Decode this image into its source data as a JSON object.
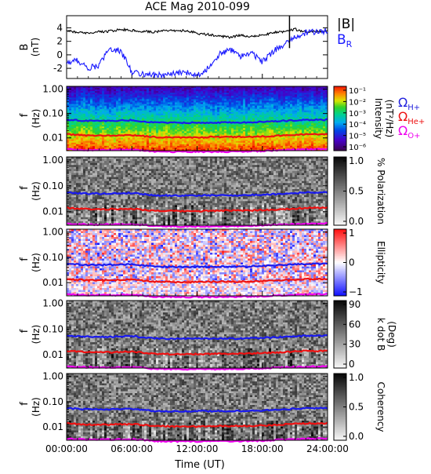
{
  "title": "ACE Mag 2010-099",
  "time_axis": {
    "label": "Time (UT)",
    "ticks": [
      "00:00:00",
      "06:00:00",
      "12:00:00",
      "18:00:00",
      "24:00:00"
    ],
    "range_hours": [
      0,
      24
    ]
  },
  "freq_axis": {
    "label": "f",
    "unit": "(Hz)",
    "ticks": [
      "1.00",
      "0.10",
      "0.01"
    ],
    "range_hz": [
      0.003,
      1.3
    ]
  },
  "gyro_labels": {
    "h": {
      "base": "Ω",
      "sub": "H+",
      "color": "#2222dd"
    },
    "he": {
      "base": "Ω",
      "sub": "He+",
      "color": "#ee1111"
    },
    "o": {
      "base": "Ω",
      "sub": "O+",
      "color": "#ee00ee"
    }
  },
  "colors": {
    "bmag": "#000000",
    "br": "#1a1aff",
    "h": "#1a1aee",
    "he": "#ee1111",
    "o": "#ee00ee"
  },
  "chart_data": [
    {
      "type": "line",
      "panel": "field",
      "ylabel": "B",
      "yunit": "(nT)",
      "ylim": [
        -3.5,
        5.8
      ],
      "yticks": [
        "4",
        "2",
        "0",
        "-2"
      ],
      "legend": [
        {
          "label": "|B|",
          "color": "#000000"
        },
        {
          "label": "B",
          "sub": "R",
          "color": "#1a1aff"
        }
      ],
      "x_hours": [
        0,
        1,
        2,
        3,
        4,
        5,
        6,
        7,
        8,
        9,
        10,
        11,
        12,
        13,
        14,
        15,
        16,
        17,
        18,
        19,
        20,
        21,
        22,
        23,
        24
      ],
      "series": [
        {
          "name": "|B|",
          "values": [
            3.6,
            3.3,
            3.2,
            3.4,
            3.5,
            3.8,
            3.6,
            3.5,
            3.4,
            3.6,
            3.5,
            3.6,
            3.2,
            3.0,
            2.8,
            2.6,
            2.9,
            2.7,
            2.9,
            3.3,
            3.4,
            3.8,
            3.4,
            3.5,
            3.5
          ]
        },
        {
          "name": "B_R",
          "values": [
            -1.2,
            -0.8,
            -2.0,
            -1.5,
            1.0,
            0.5,
            -2.5,
            -2.8,
            -3.0,
            -3.0,
            -2.8,
            -2.6,
            -3.0,
            -2.0,
            0.0,
            0.8,
            -0.2,
            0.3,
            -1.0,
            0.5,
            1.5,
            2.5,
            3.3,
            3.4,
            3.5
          ]
        }
      ]
    },
    {
      "type": "heatmap",
      "panel": "intensity",
      "colorbar_label": "Intensity",
      "colorbar_unit": "(nT²/Hz)",
      "colorbar_ticks": [
        "10⁻¹",
        "10⁻²",
        "10⁻³",
        "10⁻⁴",
        "10⁻⁵",
        "10⁻⁶"
      ],
      "colorbar_range": [
        -6.3,
        -0.5
      ]
    },
    {
      "type": "heatmap",
      "panel": "polarization",
      "colorbar_label": "% Polarization",
      "colorbar_ticks": [
        "1.0",
        "0.5",
        "0.0"
      ],
      "colorbar_range": [
        0,
        1
      ]
    },
    {
      "type": "heatmap",
      "panel": "ellipticity",
      "colorbar_label": "Ellipticity",
      "colorbar_ticks": [
        "1",
        "0",
        "−1"
      ],
      "colorbar_range": [
        -1,
        1
      ]
    },
    {
      "type": "heatmap",
      "panel": "kdotb",
      "colorbar_label": "k dot B",
      "colorbar_unit": "(Deg)",
      "colorbar_ticks": [
        "90",
        "60",
        "30",
        "0"
      ],
      "colorbar_range": [
        0,
        90
      ]
    },
    {
      "type": "heatmap",
      "panel": "coherency",
      "colorbar_label": "Coherency",
      "colorbar_ticks": [
        "1.0",
        "0.5",
        "0.0"
      ],
      "colorbar_range": [
        0,
        1
      ]
    },
    {
      "type": "line",
      "panel": "gyrofrequencies",
      "x_hours": [
        0,
        2,
        4,
        6,
        8,
        10,
        12,
        14,
        16,
        18,
        20,
        22,
        24
      ],
      "series": [
        {
          "name": "Ω H+",
          "values": [
            0.055,
            0.05,
            0.05,
            0.053,
            0.043,
            0.042,
            0.042,
            0.043,
            0.043,
            0.045,
            0.05,
            0.055,
            0.055
          ]
        },
        {
          "name": "Ω He+",
          "values": [
            0.014,
            0.0125,
            0.0125,
            0.013,
            0.011,
            0.0105,
            0.0105,
            0.011,
            0.011,
            0.0115,
            0.0125,
            0.014,
            0.014
          ]
        },
        {
          "name": "Ω O+",
          "values": [
            0.0035,
            0.0032,
            0.0032,
            0.0033,
            0.0028,
            0.0027,
            0.0027,
            0.0027,
            0.0028,
            0.0029,
            0.0032,
            0.0034,
            0.0035
          ]
        }
      ]
    }
  ]
}
